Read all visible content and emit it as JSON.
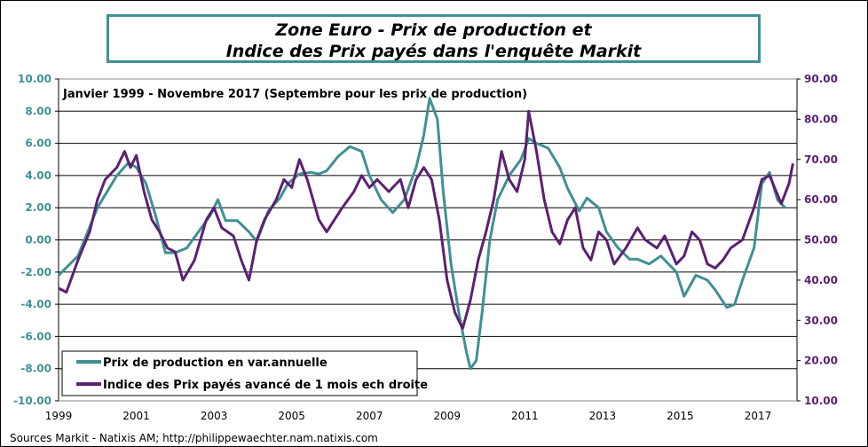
{
  "chart_data": {
    "type": "line",
    "title": [
      "Zone Euro - Prix de production et",
      "Indice des Prix payés dans l'enquête Markit"
    ],
    "subtitle": "Janvier 1999 - Novembre 2017 (Septembre pour les prix de production)",
    "source": "Sources Markit - Natixis AM; http://philippewaechter.nam.natixis.com",
    "x_ticks": [
      "1999",
      "2001",
      "2003",
      "2005",
      "2007",
      "2009",
      "2011",
      "2013",
      "2015",
      "2017"
    ],
    "xlim": [
      1999,
      2018
    ],
    "y_left": {
      "ticks": [
        "10.00",
        "8.00",
        "6.00",
        "4.00",
        "2.00",
        "0.00",
        "-2.00",
        "-4.00",
        "-6.00",
        "-8.00",
        "-10.00"
      ],
      "lim": [
        -10,
        10
      ],
      "color": "#3f9095"
    },
    "y_right": {
      "ticks": [
        "90.00",
        "80.00",
        "70.00",
        "60.00",
        "50.00",
        "40.00",
        "30.00",
        "20.00",
        "10.00"
      ],
      "lim": [
        10,
        90
      ],
      "color": "#5c2072"
    },
    "grid": "horizontal",
    "legend_position": "bottom-left",
    "series": [
      {
        "name": "Prix de production en var.annuelle",
        "axis": "left",
        "color": "#3f9095",
        "x": [
          1999.0,
          1999.5,
          2000.0,
          2000.5,
          2000.8,
          2001.0,
          2001.25,
          2001.5,
          2001.75,
          2002.0,
          2002.3,
          2002.6,
          2002.9,
          2003.1,
          2003.3,
          2003.6,
          2003.9,
          2004.1,
          2004.4,
          2004.7,
          2004.9,
          2005.2,
          2005.5,
          2005.7,
          2005.9,
          2006.2,
          2006.5,
          2006.8,
          2007.0,
          2007.3,
          2007.6,
          2007.9,
          2008.2,
          2008.4,
          2008.55,
          2008.75,
          2008.9,
          2009.1,
          2009.3,
          2009.5,
          2009.6,
          2009.75,
          2009.9,
          2010.1,
          2010.3,
          2010.6,
          2010.9,
          2011.1,
          2011.3,
          2011.6,
          2011.9,
          2012.1,
          2012.4,
          2012.6,
          2012.9,
          2013.1,
          2013.4,
          2013.7,
          2013.9,
          2014.2,
          2014.5,
          2014.7,
          2014.9,
          2015.1,
          2015.4,
          2015.7,
          2015.9,
          2016.2,
          2016.4,
          2016.6,
          2016.9,
          2017.1,
          2017.3,
          2017.5,
          2017.7
        ],
        "values": [
          -2.2,
          -1.0,
          2.0,
          4.0,
          4.8,
          4.5,
          3.5,
          1.5,
          -0.8,
          -0.8,
          -0.5,
          0.5,
          1.5,
          2.5,
          1.2,
          1.2,
          0.5,
          -0.1,
          1.8,
          2.6,
          3.5,
          4.1,
          4.2,
          4.1,
          4.3,
          5.2,
          5.8,
          5.5,
          4.0,
          2.5,
          1.7,
          2.5,
          4.5,
          6.5,
          8.8,
          7.5,
          3.0,
          -1.5,
          -4.5,
          -7.0,
          -8.0,
          -7.5,
          -4.5,
          0.0,
          2.5,
          4.0,
          5.0,
          6.3,
          6.0,
          5.7,
          4.5,
          3.2,
          1.8,
          2.6,
          2.0,
          0.5,
          -0.5,
          -1.2,
          -1.2,
          -1.5,
          -1.0,
          -1.5,
          -2.0,
          -3.5,
          -2.2,
          -2.5,
          -3.1,
          -4.2,
          -4.0,
          -2.5,
          -0.5,
          3.5,
          4.2,
          2.5,
          2.0
        ]
      },
      {
        "name": "Indice des Prix payés avancé de 1 mois ech droite",
        "axis": "right",
        "color": "#5c2072",
        "x": [
          1999.0,
          1999.2,
          1999.5,
          1999.8,
          2000.0,
          2000.2,
          2000.5,
          2000.7,
          2000.85,
          2001.0,
          2001.2,
          2001.4,
          2001.6,
          2001.8,
          2002.0,
          2002.2,
          2002.5,
          2002.8,
          2003.0,
          2003.2,
          2003.5,
          2003.7,
          2003.9,
          2004.1,
          2004.3,
          2004.6,
          2004.8,
          2005.0,
          2005.2,
          2005.4,
          2005.7,
          2005.9,
          2006.1,
          2006.3,
          2006.6,
          2006.8,
          2007.0,
          2007.2,
          2007.5,
          2007.8,
          2008.0,
          2008.2,
          2008.4,
          2008.6,
          2008.8,
          2009.0,
          2009.2,
          2009.4,
          2009.6,
          2009.8,
          2010.0,
          2010.2,
          2010.4,
          2010.6,
          2010.8,
          2011.0,
          2011.1,
          2011.3,
          2011.5,
          2011.7,
          2011.9,
          2012.1,
          2012.3,
          2012.5,
          2012.7,
          2012.9,
          2013.1,
          2013.3,
          2013.6,
          2013.9,
          2014.1,
          2014.4,
          2014.6,
          2014.9,
          2015.1,
          2015.3,
          2015.5,
          2015.7,
          2015.9,
          2016.1,
          2016.3,
          2016.6,
          2016.9,
          2017.1,
          2017.3,
          2017.6,
          2017.8,
          2017.9
        ],
        "values": [
          38,
          37,
          45,
          52,
          60,
          65,
          68,
          72,
          68,
          71,
          62,
          55,
          52,
          48,
          47,
          40,
          45,
          55,
          58,
          53,
          51,
          45,
          40,
          50,
          55,
          60,
          65,
          63,
          70,
          65,
          55,
          52,
          55,
          58,
          62,
          66,
          63,
          65,
          62,
          65,
          58,
          65,
          68,
          65,
          55,
          40,
          32,
          28,
          35,
          45,
          52,
          60,
          72,
          65,
          62,
          70,
          82,
          72,
          60,
          52,
          49,
          55,
          58,
          48,
          45,
          52,
          50,
          44,
          48,
          53,
          50,
          48,
          51,
          44,
          46,
          52,
          50,
          44,
          43,
          45,
          48,
          50,
          58,
          65,
          66,
          59,
          64,
          69
        ]
      }
    ]
  }
}
